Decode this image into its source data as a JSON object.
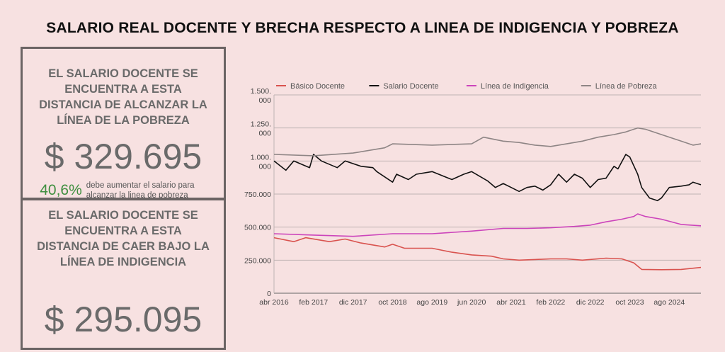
{
  "title": "SALARIO REAL DOCENTE Y BRECHA RESPECTO A LINEA DE  INDIGENCIA Y POBREZA",
  "cards": {
    "poverty": {
      "text": "EL SALARIO DOCENTE SE ENCUENTRA A ESTA DISTANCIA DE ALCANZAR LA LÍNEA DE LA POBREZA",
      "amount": "$ 329.695",
      "percent": "40,6%",
      "percent_text": "debe aumentar el salario para alcanzar la linea de pobreza"
    },
    "indigence": {
      "text": "EL SALARIO DOCENTE SE ENCUENTRA A ESTA DISTANCIA DE CAER BAJO LA LÍNEA DE INDIGENCIA",
      "amount": "$ 295.095"
    }
  },
  "chart_data": {
    "type": "line",
    "x_tick_labels": [
      "abr 2016",
      "feb 2017",
      "dic 2017",
      "oct 2018",
      "ago 2019",
      "jun 2020",
      "abr 2021",
      "feb 2022",
      "dic 2022",
      "oct 2023",
      "ago 2024"
    ],
    "x_tick_index": [
      0,
      10,
      20,
      30,
      40,
      50,
      60,
      70,
      80,
      90,
      100
    ],
    "x_count": 109,
    "y_tick_labels": [
      "0",
      "250.000",
      "500.000",
      "750.000",
      "1.000.000",
      "1.250.000",
      "1.500.000"
    ],
    "ylim": [
      0,
      1500000
    ],
    "grid": true,
    "legend_position": "top",
    "series": [
      {
        "name": "Básico Docente",
        "color": "#d9534f",
        "points": [
          [
            0,
            420000
          ],
          [
            5,
            390000
          ],
          [
            8,
            420000
          ],
          [
            14,
            390000
          ],
          [
            18,
            410000
          ],
          [
            22,
            380000
          ],
          [
            28,
            350000
          ],
          [
            30,
            370000
          ],
          [
            33,
            340000
          ],
          [
            40,
            340000
          ],
          [
            45,
            310000
          ],
          [
            50,
            290000
          ],
          [
            55,
            280000
          ],
          [
            58,
            260000
          ],
          [
            62,
            250000
          ],
          [
            66,
            255000
          ],
          [
            70,
            260000
          ],
          [
            74,
            260000
          ],
          [
            78,
            250000
          ],
          [
            84,
            265000
          ],
          [
            88,
            260000
          ],
          [
            91,
            230000
          ],
          [
            93,
            180000
          ],
          [
            98,
            178000
          ],
          [
            103,
            180000
          ],
          [
            108,
            195000
          ]
        ]
      },
      {
        "name": "Salario Docente",
        "color": "#111111",
        "points": [
          [
            0,
            1000000
          ],
          [
            3,
            930000
          ],
          [
            5,
            1000000
          ],
          [
            9,
            950000
          ],
          [
            10,
            1050000
          ],
          [
            12,
            1000000
          ],
          [
            16,
            950000
          ],
          [
            18,
            1000000
          ],
          [
            22,
            960000
          ],
          [
            25,
            950000
          ],
          [
            26,
            920000
          ],
          [
            30,
            840000
          ],
          [
            31,
            900000
          ],
          [
            34,
            860000
          ],
          [
            36,
            900000
          ],
          [
            40,
            920000
          ],
          [
            45,
            860000
          ],
          [
            48,
            900000
          ],
          [
            50,
            920000
          ],
          [
            54,
            850000
          ],
          [
            56,
            800000
          ],
          [
            58,
            830000
          ],
          [
            60,
            800000
          ],
          [
            62,
            770000
          ],
          [
            64,
            800000
          ],
          [
            66,
            810000
          ],
          [
            68,
            780000
          ],
          [
            70,
            820000
          ],
          [
            72,
            900000
          ],
          [
            74,
            840000
          ],
          [
            76,
            900000
          ],
          [
            78,
            870000
          ],
          [
            80,
            800000
          ],
          [
            82,
            860000
          ],
          [
            84,
            870000
          ],
          [
            86,
            960000
          ],
          [
            87,
            940000
          ],
          [
            89,
            1050000
          ],
          [
            90,
            1030000
          ],
          [
            92,
            900000
          ],
          [
            93,
            800000
          ],
          [
            95,
            720000
          ],
          [
            97,
            700000
          ],
          [
            98,
            720000
          ],
          [
            100,
            800000
          ],
          [
            103,
            810000
          ],
          [
            105,
            820000
          ],
          [
            106,
            840000
          ],
          [
            108,
            820000
          ]
        ]
      },
      {
        "name": "Línea de Indigencia",
        "color": "#cc44bb",
        "points": [
          [
            0,
            450000
          ],
          [
            10,
            440000
          ],
          [
            20,
            430000
          ],
          [
            30,
            450000
          ],
          [
            40,
            450000
          ],
          [
            50,
            470000
          ],
          [
            58,
            490000
          ],
          [
            64,
            490000
          ],
          [
            70,
            495000
          ],
          [
            76,
            505000
          ],
          [
            80,
            515000
          ],
          [
            84,
            540000
          ],
          [
            88,
            560000
          ],
          [
            91,
            580000
          ],
          [
            92,
            600000
          ],
          [
            94,
            580000
          ],
          [
            98,
            560000
          ],
          [
            103,
            520000
          ],
          [
            108,
            510000
          ]
        ]
      },
      {
        "name": "Línea de Pobreza",
        "color": "#8e8585",
        "points": [
          [
            0,
            1050000
          ],
          [
            10,
            1040000
          ],
          [
            20,
            1060000
          ],
          [
            28,
            1100000
          ],
          [
            30,
            1130000
          ],
          [
            40,
            1120000
          ],
          [
            50,
            1130000
          ],
          [
            53,
            1180000
          ],
          [
            58,
            1150000
          ],
          [
            62,
            1140000
          ],
          [
            66,
            1120000
          ],
          [
            70,
            1110000
          ],
          [
            74,
            1130000
          ],
          [
            78,
            1150000
          ],
          [
            82,
            1180000
          ],
          [
            86,
            1200000
          ],
          [
            89,
            1220000
          ],
          [
            91,
            1240000
          ],
          [
            92,
            1250000
          ],
          [
            94,
            1240000
          ],
          [
            98,
            1200000
          ],
          [
            103,
            1150000
          ],
          [
            106,
            1120000
          ],
          [
            108,
            1130000
          ]
        ]
      }
    ]
  }
}
